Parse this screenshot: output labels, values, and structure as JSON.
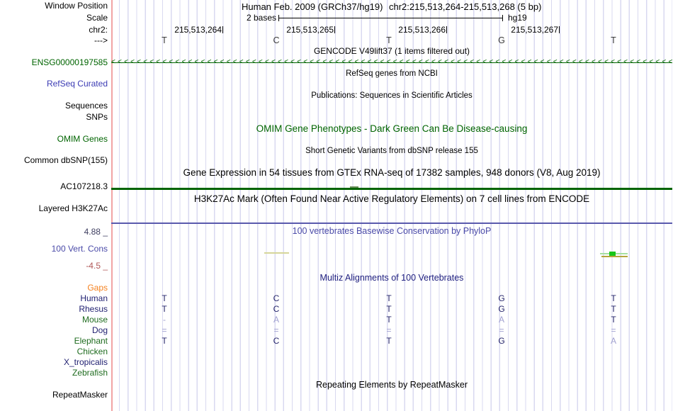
{
  "header": {
    "assembly_title": "Human Feb. 2009 (GRCh37/hg19)",
    "position_display": "chr2:215,513,264-215,513,268 (5 bp)",
    "row_labels": {
      "window_position": "Window Position",
      "scale": "Scale",
      "chrom": "chr2:",
      "strand": "--->"
    },
    "scale": {
      "value_label": "2 bases",
      "assembly": "hg19"
    },
    "ruler_ticks": [
      "215,513,264",
      "215,513,265",
      "215,513,266",
      "215,513,267"
    ],
    "sequence_bases": [
      "T",
      "C",
      "T",
      "G",
      "T"
    ]
  },
  "tracks": {
    "gencode": {
      "left_label": "ENSG00000197585",
      "title": "GENCODE V49lift37 (1 items filtered out)",
      "strand_direction": "left",
      "arrow_char": "<"
    },
    "refseq": {
      "left_label": "RefSeq Curated",
      "title": "RefSeq genes from NCBI"
    },
    "publications": {
      "left_labels": [
        "Sequences",
        "SNPs"
      ],
      "title": "Publications: Sequences in Scientific Articles"
    },
    "omim": {
      "left_label": "OMIM Genes",
      "title": "OMIM Gene Phenotypes - Dark Green Can Be Disease-causing"
    },
    "dbsnp": {
      "left_label": "Common dbSNP(155)",
      "title": "Short Genetic Variants from dbSNP release 155"
    },
    "gtex": {
      "left_label": "AC107218.3",
      "title": "Gene Expression in 54 tissues from GTEx RNA-seq of 17382 samples, 948 donors (V8, Aug 2019)"
    },
    "h3k27ac": {
      "left_label": "Layered H3K27Ac",
      "title": "H3K27Ac Mark (Often Found Near Active Regulatory Elements) on 7 cell lines from ENCODE"
    },
    "phylop": {
      "left_label": "100 Vert. Cons",
      "title": "100 vertebrates Basewise Conservation by PhyloP",
      "axis_max": "4.88 _",
      "axis_min": "-4.5 _"
    },
    "repeatmasker": {
      "left_label": "RepeatMasker",
      "title": "Repeating Elements by RepeatMasker"
    }
  },
  "alignment": {
    "title": "Multiz Alignments of 100 Vertebrates",
    "gaps_label": "Gaps",
    "species": [
      {
        "name": "Human",
        "label_color": "navy",
        "bases": [
          "T",
          "C",
          "T",
          "G",
          "T"
        ],
        "light": [
          false,
          false,
          false,
          false,
          false
        ]
      },
      {
        "name": "Rhesus",
        "label_color": "navy",
        "bases": [
          "T",
          "C",
          "T",
          "G",
          "T"
        ],
        "light": [
          false,
          false,
          false,
          false,
          false
        ]
      },
      {
        "name": "Mouse",
        "label_color": "green",
        "bases": [
          "-",
          "A",
          "T",
          "A",
          "T"
        ],
        "light": [
          true,
          true,
          false,
          true,
          false
        ]
      },
      {
        "name": "Dog",
        "label_color": "navy",
        "bases": [
          "=",
          "=",
          "=",
          "=",
          "="
        ],
        "light": [
          true,
          true,
          true,
          true,
          true
        ]
      },
      {
        "name": "Elephant",
        "label_color": "green",
        "bases": [
          "T",
          "C",
          "T",
          "G",
          "A"
        ],
        "light": [
          false,
          false,
          false,
          false,
          true
        ]
      },
      {
        "name": "Chicken",
        "label_color": "green",
        "bases": [
          "",
          "",
          "",
          "",
          ""
        ],
        "light": [
          false,
          false,
          false,
          false,
          false
        ]
      },
      {
        "name": "X_tropicalis",
        "label_color": "navy",
        "bases": [
          "",
          "",
          "",
          "",
          ""
        ],
        "light": [
          false,
          false,
          false,
          false,
          false
        ]
      },
      {
        "name": "Zebrafish",
        "label_color": "green",
        "bases": [
          "",
          "",
          "",
          "",
          ""
        ],
        "light": [
          false,
          false,
          false,
          false,
          false
        ]
      }
    ]
  },
  "colors": {
    "track_green": "#006400",
    "refseq_blue": "#3c3cb4",
    "phylop_blue": "#4a4aa8",
    "multiz_navy": "#202080",
    "gaps_orange": "#f58220",
    "species_navy": "#1f1f70",
    "species_green": "#1e6b1e",
    "base_navy": "#26266b",
    "base_light": "#a0a0d0",
    "max_label": "#3e3e60",
    "min_label": "#b05858",
    "guide": "#d9d9f0",
    "pink": "#f2a4a4"
  }
}
